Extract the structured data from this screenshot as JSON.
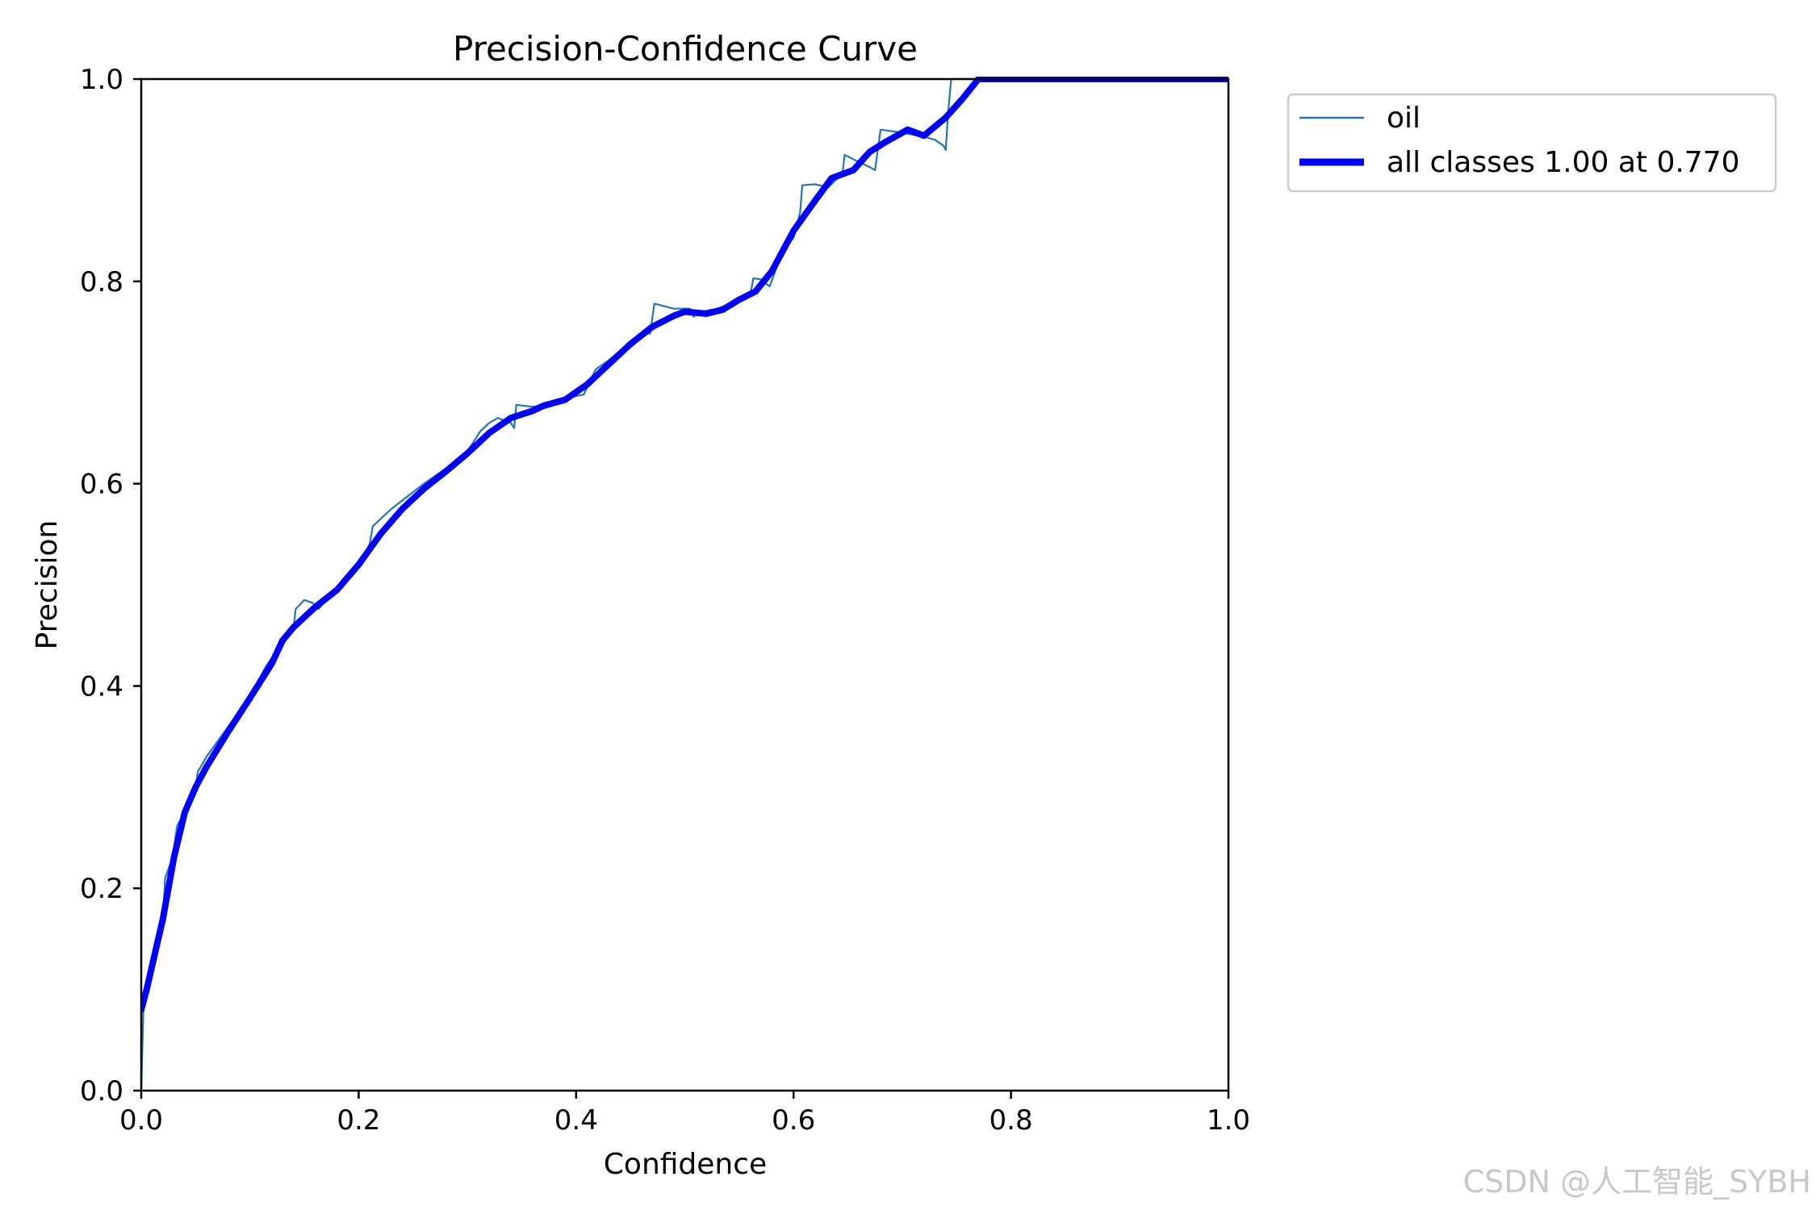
{
  "chart_data": {
    "type": "line",
    "title": "Precision-Confidence Curve",
    "xlabel": "Confidence",
    "ylabel": "Precision",
    "xlim": [
      0,
      1
    ],
    "ylim": [
      0,
      1
    ],
    "grid": false,
    "legend_position": "outside-top-right",
    "xticks": [
      "0.0",
      "0.2",
      "0.4",
      "0.6",
      "0.8",
      "1.0"
    ],
    "yticks": [
      "0.0",
      "0.2",
      "0.4",
      "0.6",
      "0.8",
      "1.0"
    ],
    "series": [
      {
        "name": "oil",
        "color": "#1f77b4",
        "style": "thin",
        "points": [
          [
            0.0,
            0.0
          ],
          [
            0.002,
            0.08
          ],
          [
            0.01,
            0.12
          ],
          [
            0.02,
            0.17
          ],
          [
            0.022,
            0.21
          ],
          [
            0.027,
            0.225
          ],
          [
            0.03,
            0.24
          ],
          [
            0.033,
            0.262
          ],
          [
            0.04,
            0.275
          ],
          [
            0.05,
            0.3
          ],
          [
            0.052,
            0.315
          ],
          [
            0.06,
            0.33
          ],
          [
            0.08,
            0.36
          ],
          [
            0.1,
            0.39
          ],
          [
            0.115,
            0.42
          ],
          [
            0.125,
            0.435
          ],
          [
            0.135,
            0.45
          ],
          [
            0.14,
            0.456
          ],
          [
            0.142,
            0.476
          ],
          [
            0.15,
            0.485
          ],
          [
            0.158,
            0.482
          ],
          [
            0.163,
            0.476
          ],
          [
            0.17,
            0.485
          ],
          [
            0.18,
            0.495
          ],
          [
            0.2,
            0.52
          ],
          [
            0.21,
            0.54
          ],
          [
            0.213,
            0.558
          ],
          [
            0.23,
            0.575
          ],
          [
            0.26,
            0.6
          ],
          [
            0.28,
            0.615
          ],
          [
            0.3,
            0.632
          ],
          [
            0.312,
            0.652
          ],
          [
            0.32,
            0.66
          ],
          [
            0.328,
            0.665
          ],
          [
            0.34,
            0.66
          ],
          [
            0.343,
            0.655
          ],
          [
            0.345,
            0.678
          ],
          [
            0.36,
            0.676
          ],
          [
            0.38,
            0.68
          ],
          [
            0.392,
            0.685
          ],
          [
            0.407,
            0.688
          ],
          [
            0.418,
            0.713
          ],
          [
            0.43,
            0.722
          ],
          [
            0.45,
            0.74
          ],
          [
            0.465,
            0.752
          ],
          [
            0.468,
            0.748
          ],
          [
            0.472,
            0.778
          ],
          [
            0.49,
            0.773
          ],
          [
            0.505,
            0.773
          ],
          [
            0.508,
            0.765
          ],
          [
            0.515,
            0.77
          ],
          [
            0.53,
            0.773
          ],
          [
            0.545,
            0.78
          ],
          [
            0.56,
            0.785
          ],
          [
            0.563,
            0.803
          ],
          [
            0.57,
            0.802
          ],
          [
            0.578,
            0.795
          ],
          [
            0.59,
            0.83
          ],
          [
            0.6,
            0.843
          ],
          [
            0.606,
            0.868
          ],
          [
            0.608,
            0.895
          ],
          [
            0.62,
            0.896
          ],
          [
            0.632,
            0.893
          ],
          [
            0.645,
            0.907
          ],
          [
            0.647,
            0.925
          ],
          [
            0.66,
            0.918
          ],
          [
            0.67,
            0.913
          ],
          [
            0.675,
            0.91
          ],
          [
            0.68,
            0.95
          ],
          [
            0.7,
            0.947
          ],
          [
            0.72,
            0.943
          ],
          [
            0.73,
            0.94
          ],
          [
            0.738,
            0.934
          ],
          [
            0.74,
            0.93
          ],
          [
            0.742,
            0.965
          ],
          [
            0.745,
            1.0
          ],
          [
            1.0,
            1.0
          ]
        ]
      },
      {
        "name": "all classes 1.00 at 0.770",
        "color": "#0000ff",
        "style": "thick",
        "points": [
          [
            0.0,
            0.08
          ],
          [
            0.005,
            0.1
          ],
          [
            0.02,
            0.17
          ],
          [
            0.03,
            0.23
          ],
          [
            0.04,
            0.275
          ],
          [
            0.05,
            0.3
          ],
          [
            0.06,
            0.32
          ],
          [
            0.08,
            0.355
          ],
          [
            0.1,
            0.388
          ],
          [
            0.12,
            0.422
          ],
          [
            0.13,
            0.445
          ],
          [
            0.14,
            0.458
          ],
          [
            0.16,
            0.478
          ],
          [
            0.18,
            0.495
          ],
          [
            0.2,
            0.52
          ],
          [
            0.22,
            0.55
          ],
          [
            0.24,
            0.575
          ],
          [
            0.26,
            0.595
          ],
          [
            0.28,
            0.612
          ],
          [
            0.3,
            0.63
          ],
          [
            0.32,
            0.65
          ],
          [
            0.34,
            0.665
          ],
          [
            0.36,
            0.672
          ],
          [
            0.37,
            0.677
          ],
          [
            0.39,
            0.683
          ],
          [
            0.41,
            0.698
          ],
          [
            0.43,
            0.718
          ],
          [
            0.45,
            0.738
          ],
          [
            0.47,
            0.755
          ],
          [
            0.49,
            0.766
          ],
          [
            0.5,
            0.77
          ],
          [
            0.52,
            0.768
          ],
          [
            0.535,
            0.772
          ],
          [
            0.55,
            0.782
          ],
          [
            0.565,
            0.79
          ],
          [
            0.58,
            0.81
          ],
          [
            0.6,
            0.85
          ],
          [
            0.62,
            0.88
          ],
          [
            0.635,
            0.902
          ],
          [
            0.655,
            0.91
          ],
          [
            0.67,
            0.928
          ],
          [
            0.685,
            0.938
          ],
          [
            0.705,
            0.95
          ],
          [
            0.72,
            0.944
          ],
          [
            0.74,
            0.962
          ],
          [
            0.755,
            0.98
          ],
          [
            0.77,
            1.0
          ],
          [
            1.0,
            1.0
          ]
        ]
      }
    ]
  },
  "watermark": "CSDN @人工智能_SYBH"
}
